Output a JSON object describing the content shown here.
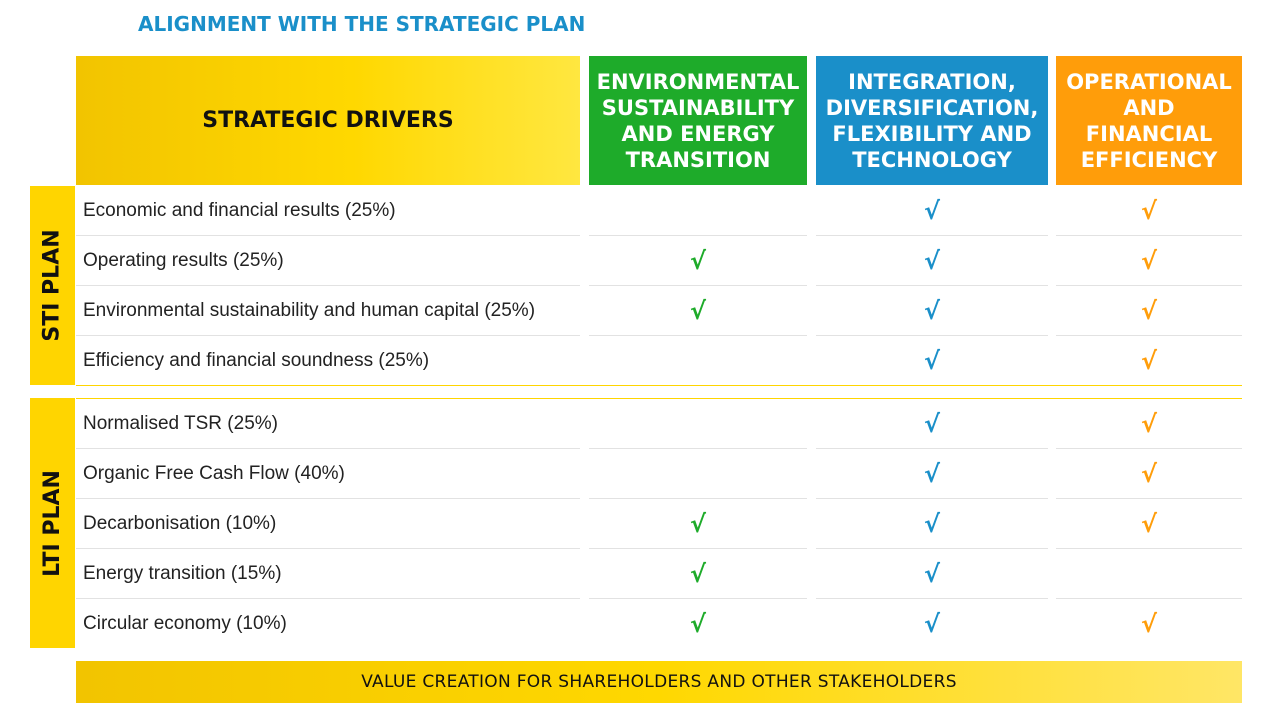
{
  "title": "ALIGNMENT WITH THE STRATEGIC PLAN",
  "header": {
    "drivers": "STRATEGIC DRIVERS",
    "columns": [
      "ENVIRONMENTAL SUSTAINABILITY AND ENERGY TRANSITION",
      "INTEGRATION, DIVERSIFICATION, FLEXIBILITY AND TECHNOLOGY",
      "OPERATIONAL AND FINANCIAL EFFICIENCY"
    ]
  },
  "colors": {
    "title": "#1a8fc9",
    "green": "#1eab2a",
    "blue": "#1a8fc9",
    "orange": "#ff9d0a",
    "yellow": "#ffd500"
  },
  "check_symbol": "√",
  "sti": {
    "label": "STI PLAN",
    "rows": [
      {
        "label": "Economic and financial results (25%)",
        "checks": [
          false,
          true,
          true
        ]
      },
      {
        "label": "Operating results (25%)",
        "checks": [
          true,
          true,
          true
        ]
      },
      {
        "label": "Environmental sustainability and human capital (25%)",
        "checks": [
          true,
          true,
          true
        ]
      },
      {
        "label": "Efficiency and financial soundness (25%)",
        "checks": [
          false,
          true,
          true
        ]
      }
    ]
  },
  "lti": {
    "label": "LTI PLAN",
    "rows": [
      {
        "label": "Normalised TSR (25%)",
        "checks": [
          false,
          true,
          true
        ]
      },
      {
        "label": "Organic Free Cash Flow (40%)",
        "checks": [
          false,
          true,
          true
        ]
      },
      {
        "label": "Decarbonisation (10%)",
        "checks": [
          true,
          true,
          true
        ]
      },
      {
        "label": "Energy transition (15%)",
        "checks": [
          true,
          true,
          false
        ]
      },
      {
        "label": "Circular economy (10%)",
        "checks": [
          true,
          true,
          true
        ]
      }
    ]
  },
  "footer": "VALUE CREATION FOR SHAREHOLDERS AND OTHER STAKEHOLDERS"
}
